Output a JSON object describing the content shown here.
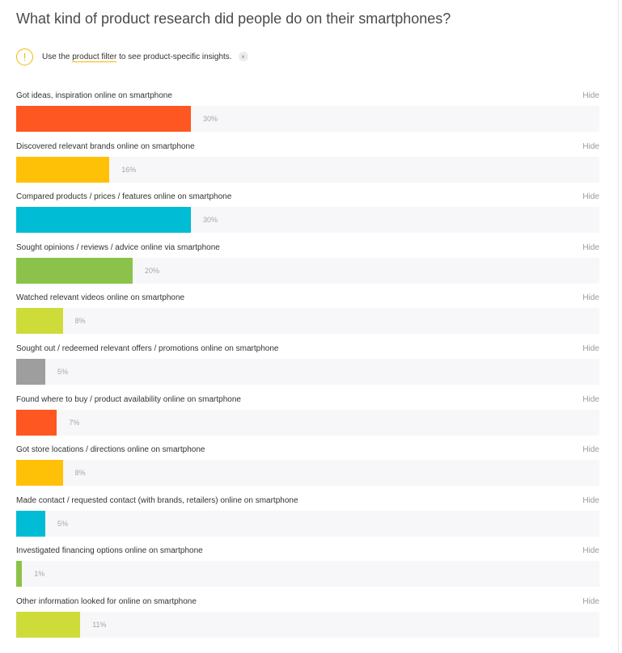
{
  "chart_data": {
    "type": "bar",
    "orientation": "horizontal",
    "title": "What kind of product research did people do on their smartphones?",
    "unit": "%",
    "xlim": [
      0,
      100
    ],
    "hide_label": "Hide",
    "categories": [
      "Got ideas, inspiration online on smartphone",
      "Discovered relevant brands online on smartphone",
      "Compared products / prices / features online on smartphone",
      "Sought opinions / reviews / advice online via smartphone",
      "Watched relevant videos online on smartphone",
      "Sought out / redeemed relevant offers / promotions online on smartphone",
      "Found where to buy / product availability online on smartphone",
      "Got store locations / directions online on smartphone",
      "Made contact / requested contact (with brands, retailers) online on smartphone",
      "Investigated financing options online on smartphone",
      "Other information looked for online on smartphone"
    ],
    "values": [
      30,
      16,
      30,
      20,
      8,
      5,
      7,
      8,
      5,
      1,
      11
    ],
    "colors": [
      "#ff5722",
      "#ffc107",
      "#00bcd4",
      "#8bc34a",
      "#cddc39",
      "#9e9e9e",
      "#ff5722",
      "#ffc107",
      "#00bcd4",
      "#8bc34a",
      "#cddc39"
    ]
  },
  "notice": {
    "icon": "exclamation-icon",
    "icon_glyph": "!",
    "text_before": "Use the",
    "link_text": "product filter",
    "text_after": "to see product-specific insights.",
    "close_glyph": "×",
    "accent_color": "#f5b700"
  }
}
